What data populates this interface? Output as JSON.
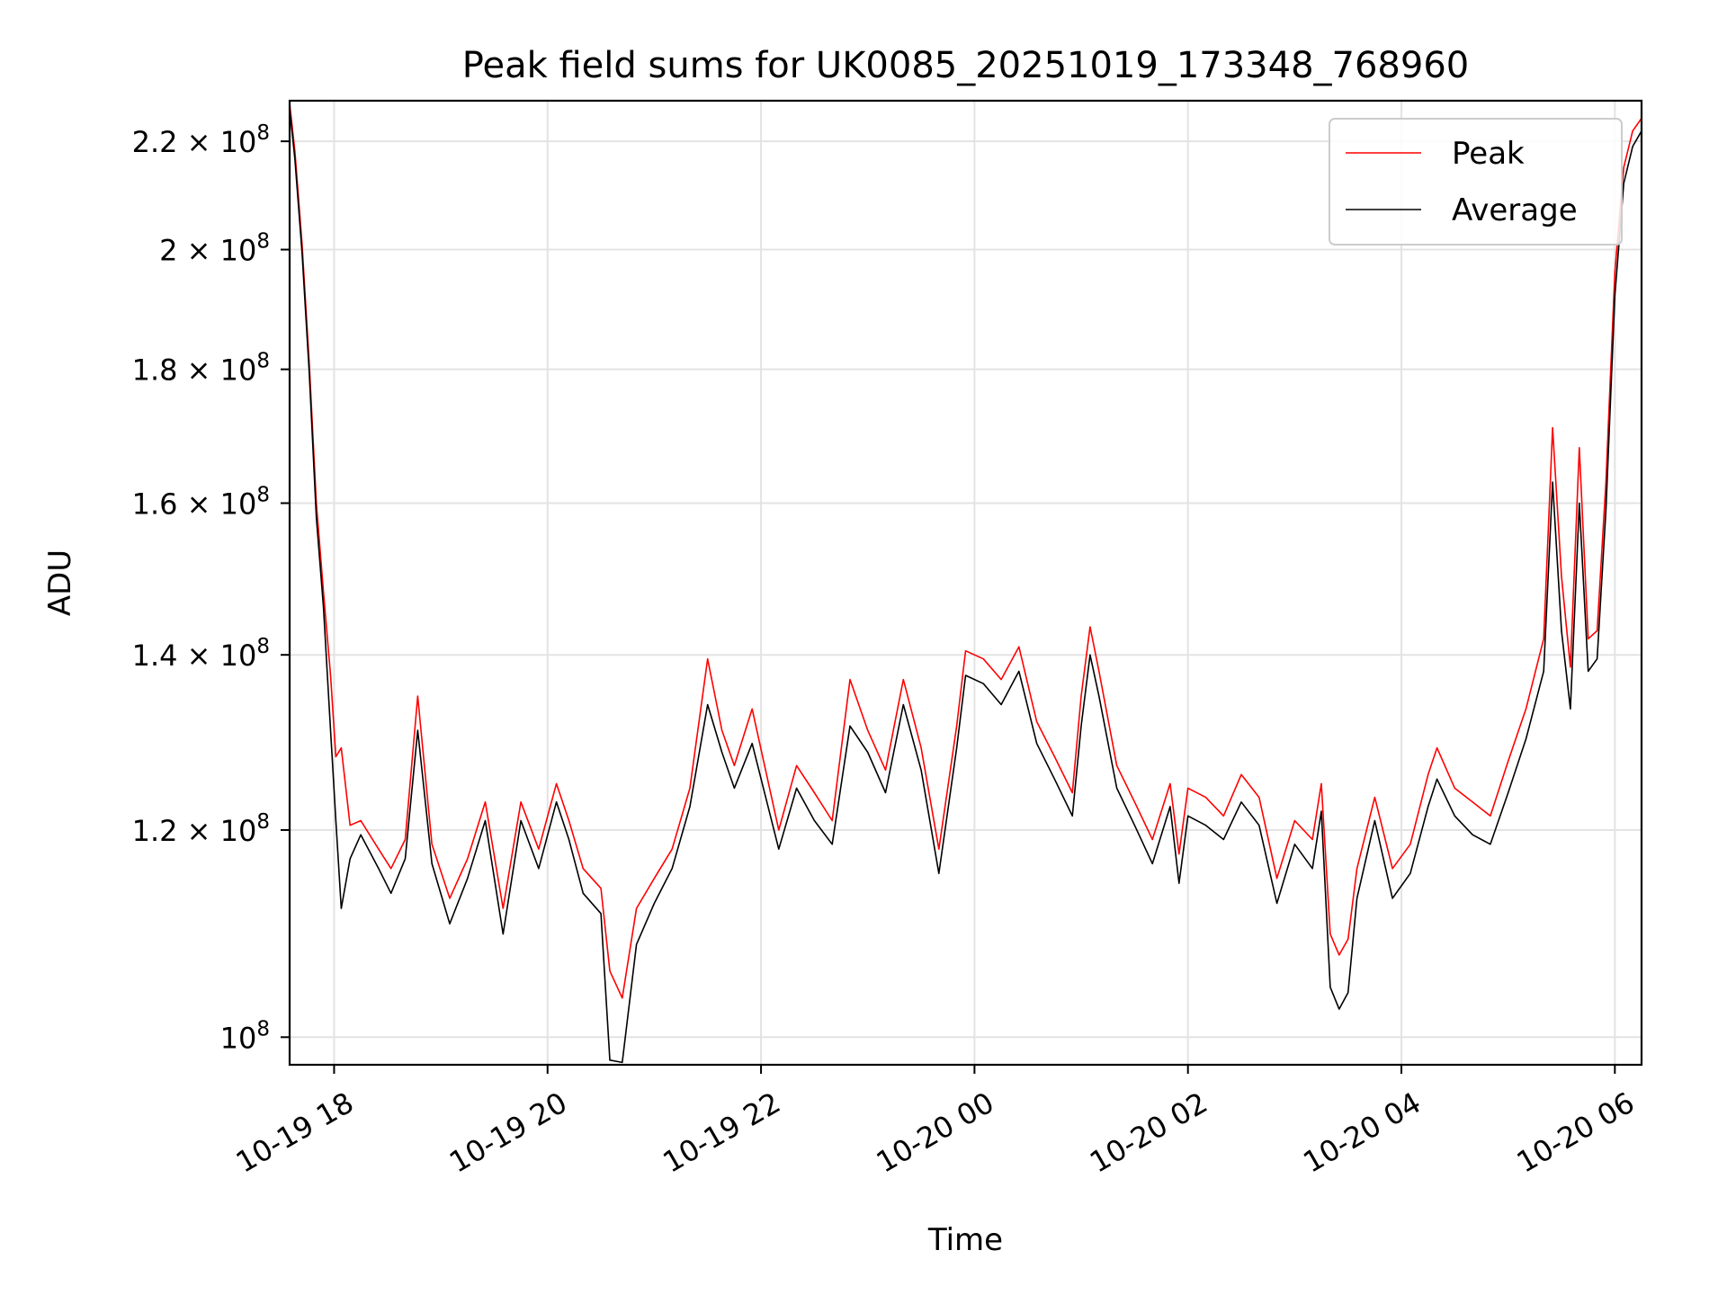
{
  "chart_data": {
    "type": "line",
    "title": "Peak field sums for UK0085_20251019_173348_768960",
    "xlabel": "Time",
    "ylabel": "ADU",
    "y_scale": "log",
    "ylim": [
      97600000,
      228000000
    ],
    "xlim": [
      "2025-10-19 17:35",
      "2025-10-20 06:15"
    ],
    "grid": true,
    "legend_position": "top-right",
    "x_ticks": [
      {
        "t": "2025-10-19 18:00",
        "label": "10-19 18"
      },
      {
        "t": "2025-10-19 20:00",
        "label": "10-19 20"
      },
      {
        "t": "2025-10-19 22:00",
        "label": "10-19 22"
      },
      {
        "t": "2025-10-20 00:00",
        "label": "10-20 00"
      },
      {
        "t": "2025-10-20 02:00",
        "label": "10-20 02"
      },
      {
        "t": "2025-10-20 04:00",
        "label": "10-20 04"
      },
      {
        "t": "2025-10-20 06:00",
        "label": "10-20 06"
      }
    ],
    "y_ticks": [
      {
        "v": 100000000,
        "mant": "",
        "base": "10",
        "exp": "8"
      },
      {
        "v": 120000000,
        "mant": "1.2 × ",
        "base": "10",
        "exp": "8"
      },
      {
        "v": 140000000,
        "mant": "1.4 × ",
        "base": "10",
        "exp": "8"
      },
      {
        "v": 160000000,
        "mant": "1.6 × ",
        "base": "10",
        "exp": "8"
      },
      {
        "v": 180000000,
        "mant": "1.8 × ",
        "base": "10",
        "exp": "8"
      },
      {
        "v": 200000000,
        "mant": "2 × ",
        "base": "10",
        "exp": "8"
      },
      {
        "v": 220000000,
        "mant": "2.2 × ",
        "base": "10",
        "exp": "8"
      }
    ],
    "series_colors": {
      "Peak": "#ff0000",
      "Average": "#000000"
    },
    "series": [
      {
        "name": "Peak",
        "color": "#ff0000",
        "x": [
          "2025-10-19 17:35",
          "2025-10-19 17:38",
          "2025-10-19 17:42",
          "2025-10-19 17:46",
          "2025-10-19 17:50",
          "2025-10-19 17:54",
          "2025-10-19 17:58",
          "2025-10-19 18:01",
          "2025-10-19 18:04",
          "2025-10-19 18:09",
          "2025-10-19 18:15",
          "2025-10-19 18:25",
          "2025-10-19 18:32",
          "2025-10-19 18:40",
          "2025-10-19 18:47",
          "2025-10-19 18:55",
          "2025-10-19 19:05",
          "2025-10-19 19:15",
          "2025-10-19 19:25",
          "2025-10-19 19:35",
          "2025-10-19 19:45",
          "2025-10-19 19:55",
          "2025-10-19 20:05",
          "2025-10-19 20:12",
          "2025-10-19 20:20",
          "2025-10-19 20:30",
          "2025-10-19 20:35",
          "2025-10-19 20:42",
          "2025-10-19 20:50",
          "2025-10-19 21:00",
          "2025-10-19 21:10",
          "2025-10-19 21:20",
          "2025-10-19 21:30",
          "2025-10-19 21:38",
          "2025-10-19 21:45",
          "2025-10-19 21:55",
          "2025-10-19 22:10",
          "2025-10-19 22:20",
          "2025-10-19 22:30",
          "2025-10-19 22:40",
          "2025-10-19 22:50",
          "2025-10-19 23:00",
          "2025-10-19 23:10",
          "2025-10-19 23:20",
          "2025-10-19 23:30",
          "2025-10-19 23:40",
          "2025-10-19 23:50",
          "2025-10-19 23:55",
          "2025-10-20 00:05",
          "2025-10-20 00:15",
          "2025-10-20 00:25",
          "2025-10-20 00:35",
          "2025-10-20 00:45",
          "2025-10-20 00:55",
          "2025-10-20 01:00",
          "2025-10-20 01:05",
          "2025-10-20 01:10",
          "2025-10-20 01:20",
          "2025-10-20 01:30",
          "2025-10-20 01:40",
          "2025-10-20 01:50",
          "2025-10-20 01:55",
          "2025-10-20 02:00",
          "2025-10-20 02:10",
          "2025-10-20 02:20",
          "2025-10-20 02:30",
          "2025-10-20 02:40",
          "2025-10-20 02:50",
          "2025-10-20 03:00",
          "2025-10-20 03:10",
          "2025-10-20 03:15",
          "2025-10-20 03:20",
          "2025-10-20 03:25",
          "2025-10-20 03:30",
          "2025-10-20 03:35",
          "2025-10-20 03:45",
          "2025-10-20 03:55",
          "2025-10-20 04:05",
          "2025-10-20 04:15",
          "2025-10-20 04:20",
          "2025-10-20 04:30",
          "2025-10-20 04:40",
          "2025-10-20 04:50",
          "2025-10-20 05:00",
          "2025-10-20 05:10",
          "2025-10-20 05:20",
          "2025-10-20 05:25",
          "2025-10-20 05:30",
          "2025-10-20 05:35",
          "2025-10-20 05:40",
          "2025-10-20 05:45",
          "2025-10-20 05:50",
          "2025-10-20 05:55",
          "2025-10-20 06:00",
          "2025-10-20 06:05",
          "2025-10-20 06:10",
          "2025-10-20 06:15"
        ],
        "y": [
          227500000,
          218000000,
          201000000,
          181000000,
          160000000,
          148000000,
          137500000,
          128000000,
          129000000,
          120500000,
          121000000,
          118000000,
          116000000,
          119000000,
          135000000,
          118500000,
          113000000,
          117000000,
          123000000,
          112000000,
          123000000,
          118000000,
          125000000,
          121000000,
          116000000,
          114000000,
          106000000,
          103500000,
          112000000,
          115000000,
          118000000,
          124500000,
          139500000,
          131000000,
          127000000,
          133500000,
          120000000,
          127000000,
          124000000,
          121000000,
          137000000,
          131000000,
          126500000,
          137000000,
          129000000,
          118000000,
          131500000,
          140500000,
          139500000,
          137000000,
          141000000,
          132000000,
          128000000,
          124000000,
          135000000,
          143500000,
          138000000,
          127000000,
          123000000,
          119000000,
          125000000,
          117500000,
          124500000,
          123500000,
          121500000,
          126000000,
          123500000,
          115000000,
          121000000,
          119000000,
          125000000,
          109500000,
          107500000,
          109000000,
          116000000,
          123500000,
          116000000,
          118500000,
          126000000,
          129000000,
          124500000,
          123000000,
          121500000,
          127500000,
          133500000,
          142000000,
          171000000,
          150000000,
          138500000,
          168000000,
          142000000,
          143000000,
          163000000,
          196000000,
          215000000,
          222000000,
          224500000
        ]
      },
      {
        "name": "Average",
        "color": "#000000",
        "x": [
          "2025-10-19 17:35",
          "2025-10-19 17:38",
          "2025-10-19 17:42",
          "2025-10-19 17:46",
          "2025-10-19 17:50",
          "2025-10-19 17:54",
          "2025-10-19 17:58",
          "2025-10-19 18:01",
          "2025-10-19 18:04",
          "2025-10-19 18:09",
          "2025-10-19 18:15",
          "2025-10-19 18:25",
          "2025-10-19 18:32",
          "2025-10-19 18:40",
          "2025-10-19 18:47",
          "2025-10-19 18:55",
          "2025-10-19 19:05",
          "2025-10-19 19:15",
          "2025-10-19 19:25",
          "2025-10-19 19:35",
          "2025-10-19 19:45",
          "2025-10-19 19:55",
          "2025-10-19 20:05",
          "2025-10-19 20:12",
          "2025-10-19 20:20",
          "2025-10-19 20:30",
          "2025-10-19 20:35",
          "2025-10-19 20:42",
          "2025-10-19 20:50",
          "2025-10-19 21:00",
          "2025-10-19 21:10",
          "2025-10-19 21:20",
          "2025-10-19 21:30",
          "2025-10-19 21:38",
          "2025-10-19 21:45",
          "2025-10-19 21:55",
          "2025-10-19 22:10",
          "2025-10-19 22:20",
          "2025-10-19 22:30",
          "2025-10-19 22:40",
          "2025-10-19 22:50",
          "2025-10-19 23:00",
          "2025-10-19 23:10",
          "2025-10-19 23:20",
          "2025-10-19 23:30",
          "2025-10-19 23:40",
          "2025-10-19 23:50",
          "2025-10-19 23:55",
          "2025-10-20 00:05",
          "2025-10-20 00:15",
          "2025-10-20 00:25",
          "2025-10-20 00:35",
          "2025-10-20 00:45",
          "2025-10-20 00:55",
          "2025-10-20 01:00",
          "2025-10-20 01:05",
          "2025-10-20 01:10",
          "2025-10-20 01:20",
          "2025-10-20 01:30",
          "2025-10-20 01:40",
          "2025-10-20 01:50",
          "2025-10-20 01:55",
          "2025-10-20 02:00",
          "2025-10-20 02:10",
          "2025-10-20 02:20",
          "2025-10-20 02:30",
          "2025-10-20 02:40",
          "2025-10-20 02:50",
          "2025-10-20 03:00",
          "2025-10-20 03:10",
          "2025-10-20 03:15",
          "2025-10-20 03:20",
          "2025-10-20 03:25",
          "2025-10-20 03:30",
          "2025-10-20 03:35",
          "2025-10-20 03:45",
          "2025-10-20 03:55",
          "2025-10-20 04:05",
          "2025-10-20 04:15",
          "2025-10-20 04:20",
          "2025-10-20 04:30",
          "2025-10-20 04:40",
          "2025-10-20 04:50",
          "2025-10-20 05:00",
          "2025-10-20 05:10",
          "2025-10-20 05:20",
          "2025-10-20 05:25",
          "2025-10-20 05:30",
          "2025-10-20 05:35",
          "2025-10-20 05:40",
          "2025-10-20 05:45",
          "2025-10-20 05:50",
          "2025-10-20 05:55",
          "2025-10-20 06:00",
          "2025-10-20 06:05",
          "2025-10-20 06:10",
          "2025-10-20 06:15"
        ],
        "y": [
          226500000,
          216500000,
          199500000,
          179500000,
          158000000,
          146000000,
          131000000,
          121000000,
          112000000,
          117000000,
          119500000,
          116000000,
          113500000,
          117000000,
          131000000,
          116500000,
          110500000,
          115000000,
          121000000,
          109500000,
          121000000,
          116000000,
          123000000,
          119000000,
          113500000,
          111500000,
          98000000,
          97800000,
          108500000,
          112500000,
          116000000,
          122500000,
          134000000,
          128500000,
          124500000,
          129500000,
          118000000,
          124500000,
          121000000,
          118500000,
          131500000,
          128500000,
          124000000,
          134000000,
          126500000,
          115500000,
          129000000,
          137500000,
          136500000,
          134000000,
          138000000,
          129500000,
          125500000,
          121500000,
          131500000,
          140000000,
          135000000,
          124500000,
          120500000,
          116500000,
          122500000,
          114500000,
          121500000,
          120500000,
          119000000,
          123000000,
          120500000,
          112500000,
          118500000,
          116000000,
          122000000,
          104500000,
          102500000,
          104000000,
          113000000,
          121000000,
          113000000,
          115500000,
          122500000,
          125500000,
          121500000,
          119500000,
          118500000,
          124000000,
          130000000,
          138000000,
          163000000,
          143000000,
          133500000,
          160000000,
          138000000,
          139500000,
          159000000,
          192000000,
          212000000,
          219000000,
          222000000
        ]
      }
    ]
  }
}
